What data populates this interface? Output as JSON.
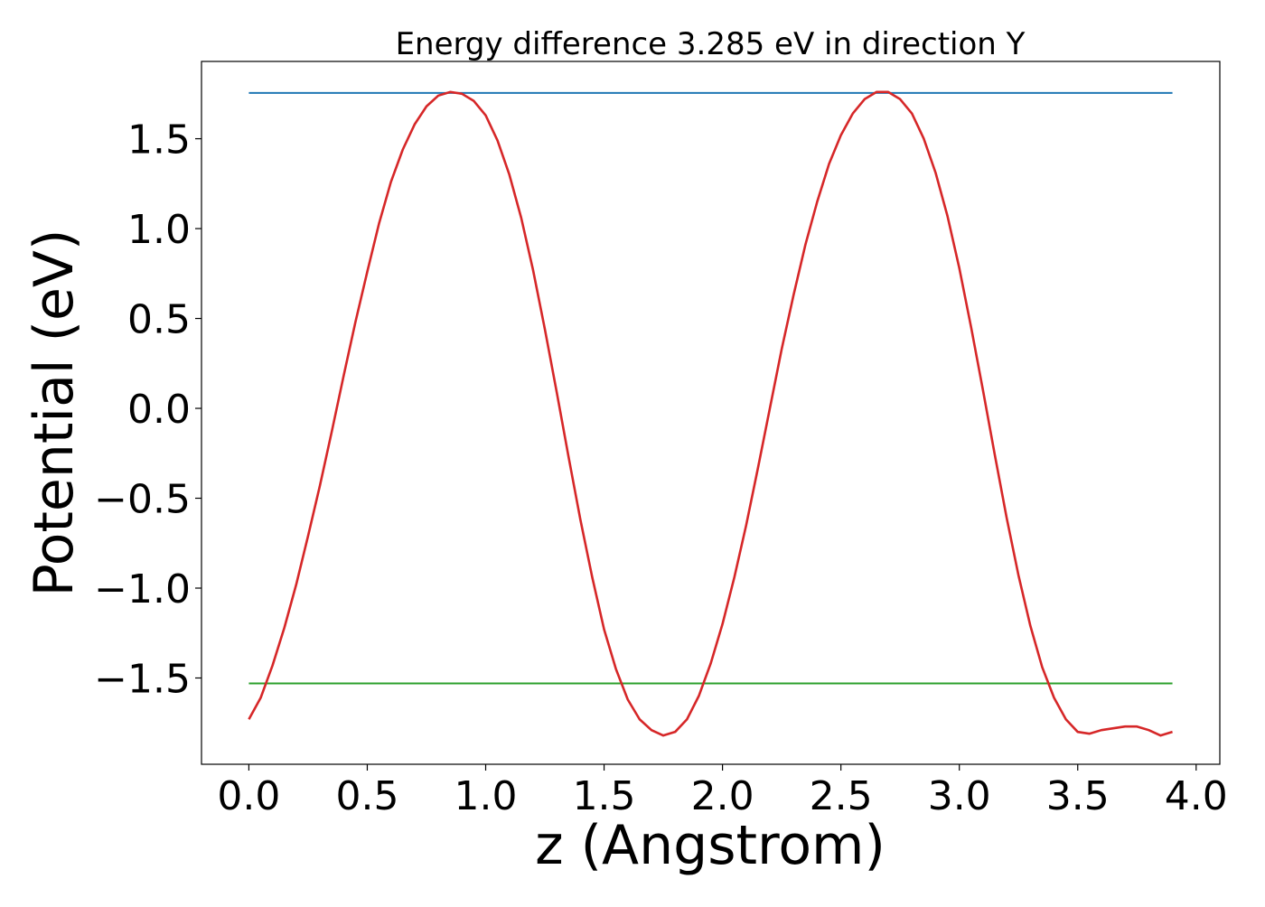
{
  "chart_data": {
    "type": "line",
    "title": "Energy difference 3.285 eV in direction Y",
    "xlabel": "z (Angstrom)",
    "ylabel": "Potential (eV)",
    "xlim": [
      -0.2,
      4.1
    ],
    "ylim": [
      -1.98,
      1.93
    ],
    "xticks": [
      0.0,
      0.5,
      1.0,
      1.5,
      2.0,
      2.5,
      3.0,
      3.5,
      4.0
    ],
    "xtick_labels": [
      "0.0",
      "0.5",
      "1.0",
      "1.5",
      "2.0",
      "2.5",
      "3.0",
      "3.5",
      "4.0"
    ],
    "yticks": [
      -1.5,
      -1.0,
      -0.5,
      0.0,
      0.5,
      1.0,
      1.5
    ],
    "ytick_labels": [
      "−1.5",
      "−1.0",
      "−0.5",
      "0.0",
      "0.5",
      "1.0",
      "1.5"
    ],
    "grid": false,
    "series": [
      {
        "color": "#d62728",
        "x": [
          0.0,
          0.05,
          0.1,
          0.15,
          0.2,
          0.25,
          0.3,
          0.35,
          0.4,
          0.45,
          0.5,
          0.55,
          0.6,
          0.65,
          0.7,
          0.75,
          0.8,
          0.85,
          0.9,
          0.95,
          1.0,
          1.05,
          1.1,
          1.15,
          1.2,
          1.25,
          1.3,
          1.35,
          1.4,
          1.45,
          1.5,
          1.55,
          1.6,
          1.65,
          1.7,
          1.75,
          1.8,
          1.85,
          1.9,
          1.95,
          2.0,
          2.05,
          2.1,
          2.15,
          2.2,
          2.25,
          2.3,
          2.35,
          2.4,
          2.45,
          2.5,
          2.55,
          2.6,
          2.65,
          2.7,
          2.75,
          2.8,
          2.85,
          2.9,
          2.95,
          3.0,
          3.05,
          3.1,
          3.15,
          3.2,
          3.25,
          3.3,
          3.35,
          3.4,
          3.45,
          3.5,
          3.55,
          3.6,
          3.65,
          3.7,
          3.75,
          3.8,
          3.85,
          3.9
        ],
        "y": [
          -1.73,
          -1.61,
          -1.43,
          -1.22,
          -0.98,
          -0.71,
          -0.43,
          -0.13,
          0.18,
          0.48,
          0.76,
          1.03,
          1.26,
          1.44,
          1.58,
          1.68,
          1.74,
          1.76,
          1.75,
          1.71,
          1.63,
          1.49,
          1.3,
          1.06,
          0.77,
          0.44,
          0.09,
          -0.27,
          -0.62,
          -0.94,
          -1.23,
          -1.45,
          -1.62,
          -1.73,
          -1.79,
          -1.82,
          -1.8,
          -1.73,
          -1.6,
          -1.42,
          -1.2,
          -0.94,
          -0.65,
          -0.33,
          0.0,
          0.33,
          0.63,
          0.91,
          1.15,
          1.36,
          1.52,
          1.64,
          1.72,
          1.76,
          1.76,
          1.72,
          1.64,
          1.5,
          1.31,
          1.07,
          0.78,
          0.45,
          0.1,
          -0.26,
          -0.61,
          -0.93,
          -1.21,
          -1.44,
          -1.61,
          -1.73,
          -1.8,
          -1.81,
          -1.79,
          -1.78,
          -1.77,
          -1.77,
          -1.79,
          -1.82,
          -1.8
        ]
      },
      {
        "color": "#1f77b4",
        "x": [
          0.0,
          3.9
        ],
        "y": [
          1.755,
          1.755
        ]
      },
      {
        "color": "#2ca02c",
        "x": [
          0.0,
          3.9
        ],
        "y": [
          -1.53,
          -1.53
        ]
      }
    ]
  }
}
